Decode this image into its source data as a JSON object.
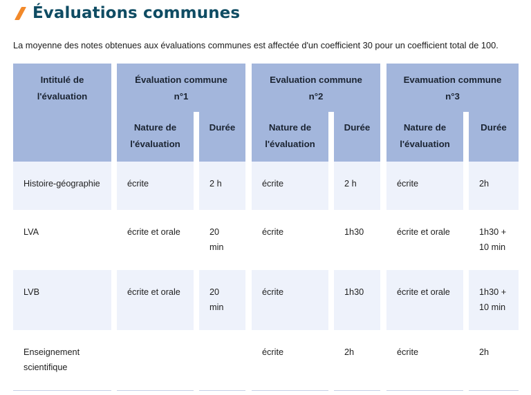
{
  "heading": {
    "title": "Évaluations communes"
  },
  "intro": "La moyenne des notes obtenues aux évaluations communes est affectée d'un coefficient 30 pour un coefficient total de 100.",
  "table": {
    "col_subject_header": [
      "Intitulé de",
      "l'évaluation"
    ],
    "groups": [
      {
        "title": [
          "Évaluation commune",
          "n°1"
        ]
      },
      {
        "title": [
          "Evaluation commune",
          "n°2"
        ]
      },
      {
        "title": [
          "Evamuation commune",
          "n°3"
        ]
      }
    ],
    "sub_nature": [
      "Nature de",
      "l'évaluation"
    ],
    "sub_duree": "Durée",
    "rows": [
      {
        "subject": [
          "Histoire-géographie"
        ],
        "cells": [
          {
            "nature": [
              "écrite"
            ],
            "duree": [
              "2 h"
            ]
          },
          {
            "nature": [
              "écrite"
            ],
            "duree": [
              "2 h"
            ]
          },
          {
            "nature": [
              "écrite"
            ],
            "duree": [
              "2h"
            ]
          }
        ]
      },
      {
        "subject": [
          "LVA"
        ],
        "cells": [
          {
            "nature": [
              "écrite et orale"
            ],
            "duree": [
              "20",
              "min"
            ]
          },
          {
            "nature": [
              "écrite"
            ],
            "duree": [
              "1h30"
            ]
          },
          {
            "nature": [
              "écrite et orale"
            ],
            "duree": [
              "1h30 +",
              "10 min"
            ]
          }
        ]
      },
      {
        "subject": [
          "LVB"
        ],
        "cells": [
          {
            "nature": [
              "écrite et orale"
            ],
            "duree": [
              "20",
              "min"
            ]
          },
          {
            "nature": [
              "écrite"
            ],
            "duree": [
              "1h30"
            ]
          },
          {
            "nature": [
              "écrite et orale"
            ],
            "duree": [
              "1h30 +",
              "10 min"
            ]
          }
        ]
      },
      {
        "subject": [
          "Enseignement",
          "scientifique"
        ],
        "cells": [
          {
            "nature": [
              ""
            ],
            "duree": [
              ""
            ]
          },
          {
            "nature": [
              "écrite"
            ],
            "duree": [
              "2h"
            ]
          },
          {
            "nature": [
              "écrite"
            ],
            "duree": [
              "2h"
            ]
          }
        ]
      }
    ]
  }
}
